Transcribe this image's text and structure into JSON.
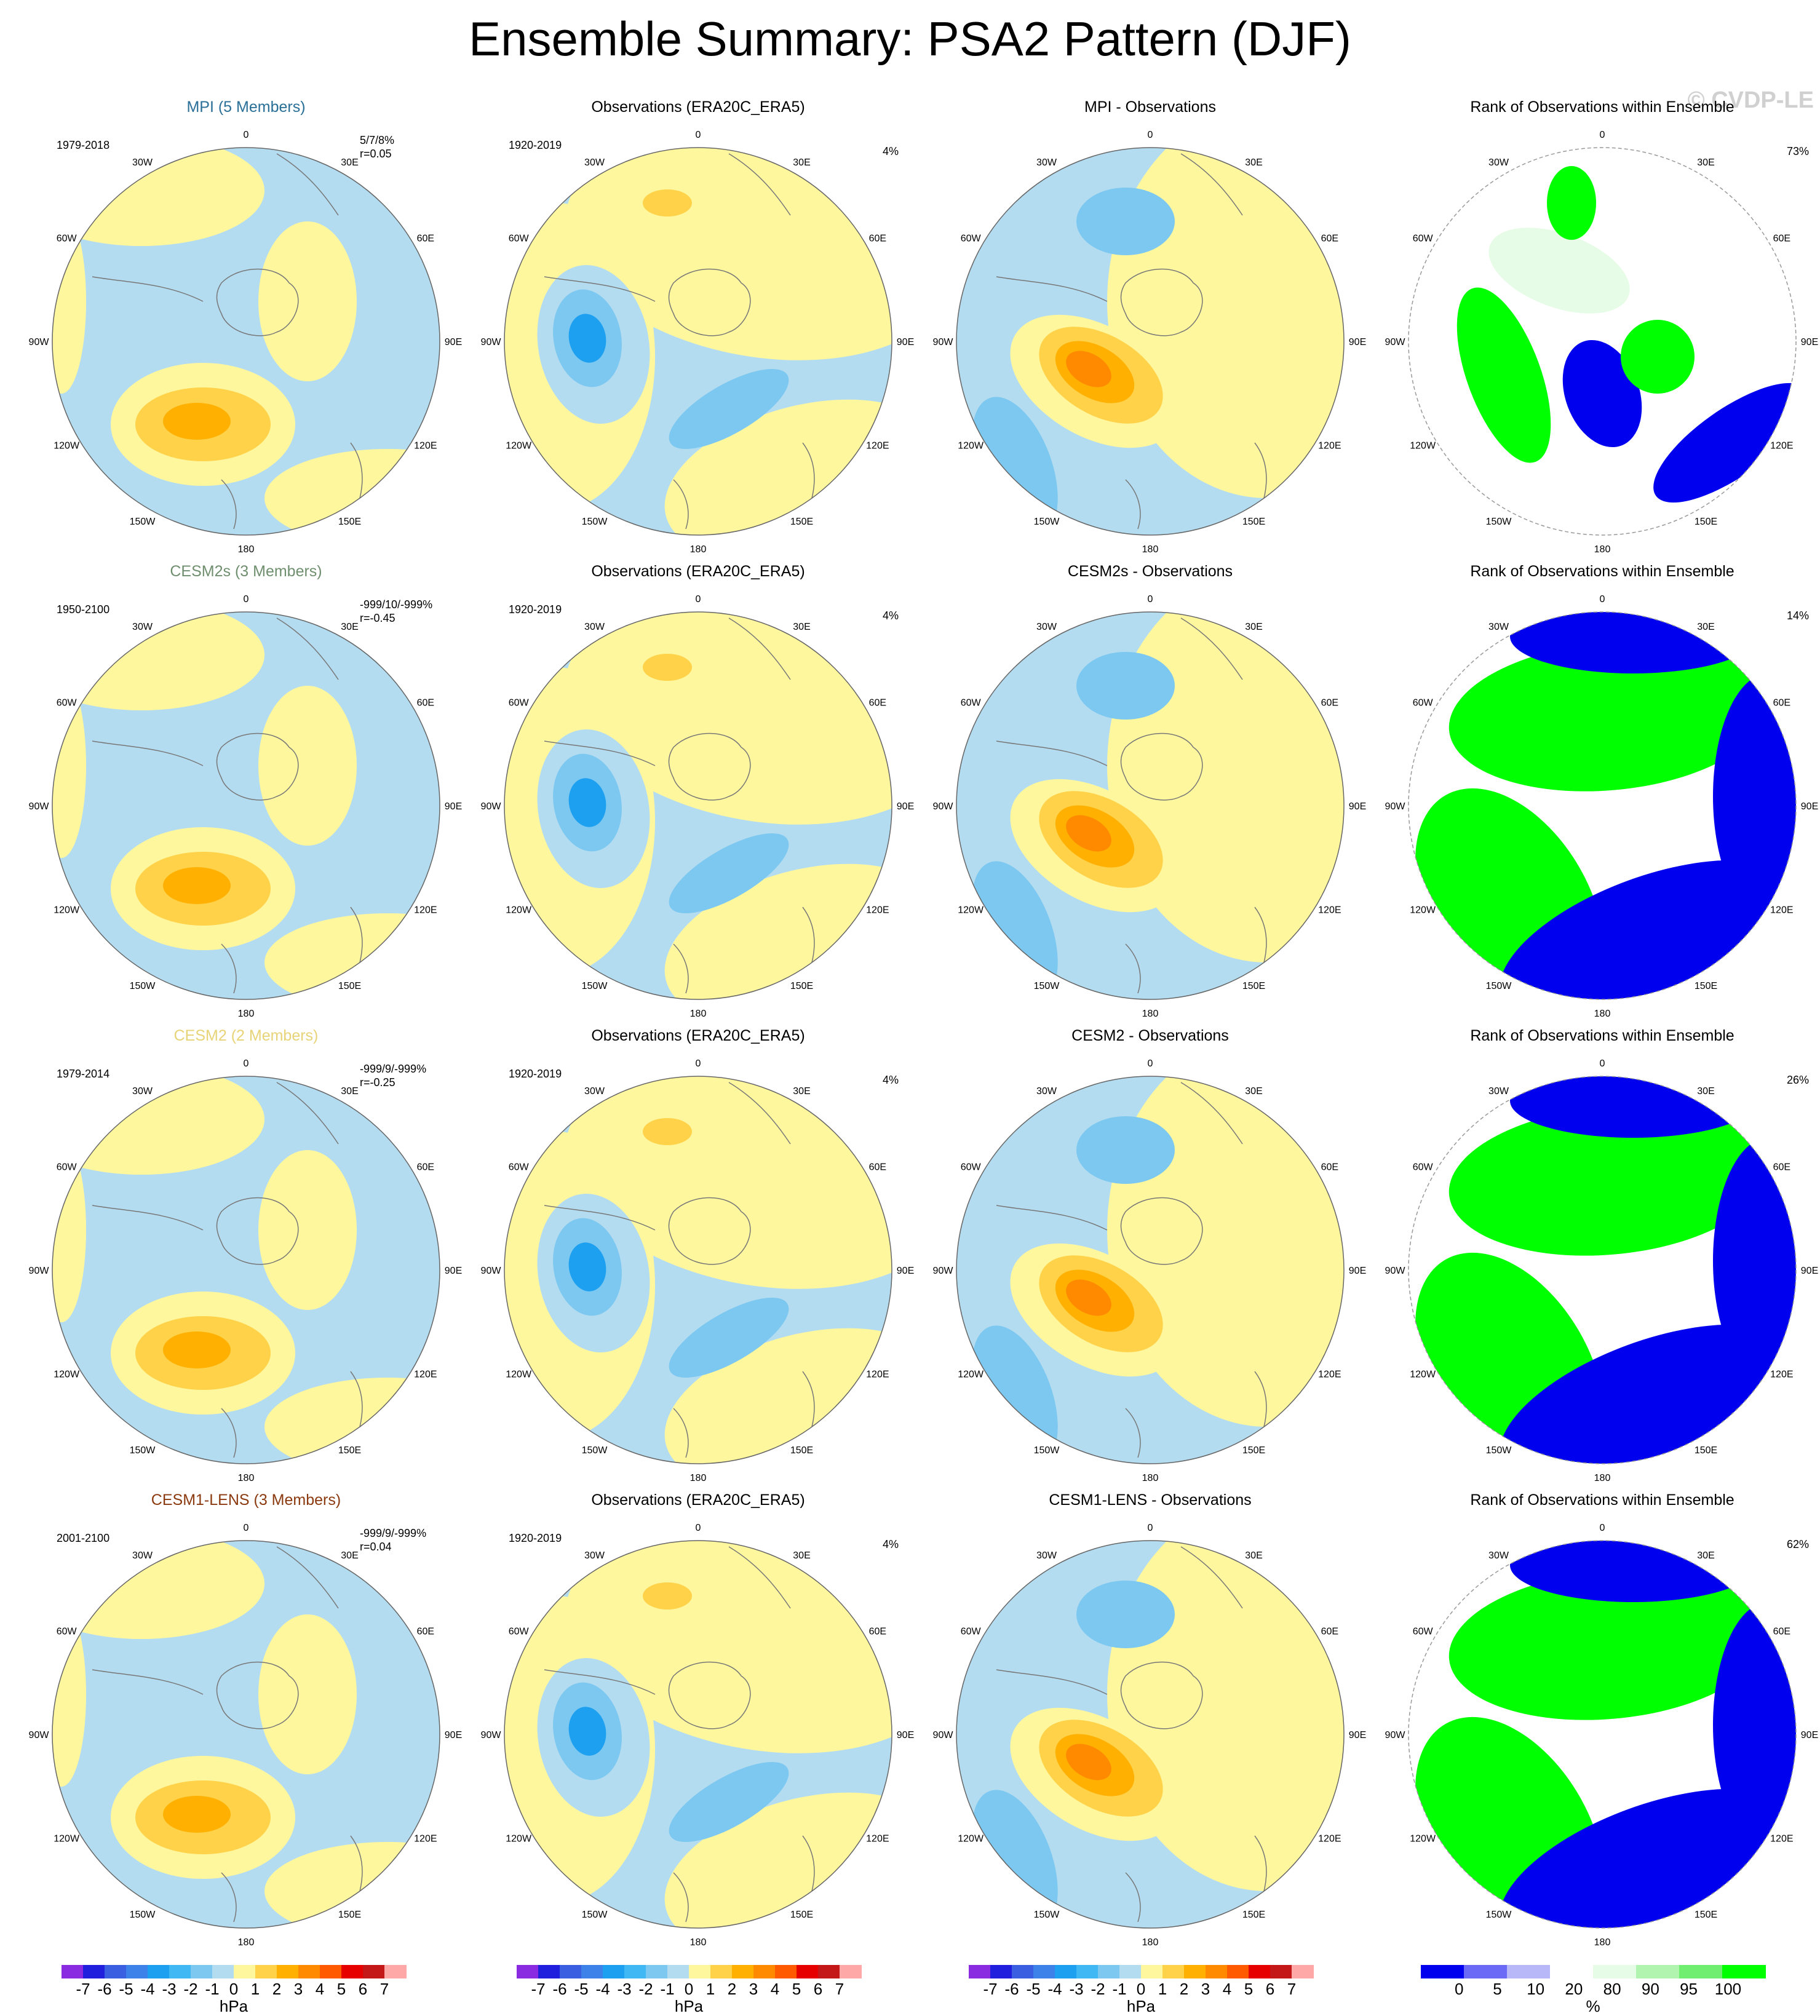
{
  "title": "Ensemble Summary: PSA2 Pattern (DJF)",
  "watermark": "© CVDP-LE",
  "lon_labels": [
    "0",
    "30E",
    "60E",
    "90E",
    "120E",
    "150E",
    "180",
    "150W",
    "120W",
    "90W",
    "60W",
    "30W"
  ],
  "colors": {
    "ocean_light_blue": "#b4dcf0",
    "land_yellow": "#fff79e",
    "rank_blue": "#0000ee",
    "rank_green": "#00ff00",
    "rank_pale_green": "#e6fce6"
  },
  "chart_data": [
    {
      "type": "heatmap",
      "row": 0,
      "col": 0,
      "title": "MPI (5 Members)",
      "title_color": "#2a6f97",
      "years": "1979-2018",
      "stats_line1": "5/7/8%",
      "stats_line2": "r=0.05",
      "map": "model"
    },
    {
      "type": "heatmap",
      "row": 0,
      "col": 1,
      "title": "Observations (ERA20C_ERA5)",
      "years": "1920-2019",
      "pct": "4%",
      "map": "obs"
    },
    {
      "type": "heatmap",
      "row": 0,
      "col": 2,
      "title": "MPI - Observations",
      "map": "diff_mpi"
    },
    {
      "type": "heatmap",
      "row": 0,
      "col": 3,
      "title": "Rank of Observations within Ensemble",
      "pct": "73%",
      "map": "rank_mpi"
    },
    {
      "type": "heatmap",
      "row": 1,
      "col": 0,
      "title": "CESM2s (3 Members)",
      "title_color": "#6f8f6f",
      "years": "1950-2100",
      "stats_line1": "-999/10/-999%",
      "stats_line2": "r=-0.45",
      "map": "model"
    },
    {
      "type": "heatmap",
      "row": 1,
      "col": 1,
      "title": "Observations (ERA20C_ERA5)",
      "years": "1920-2019",
      "pct": "4%",
      "map": "obs"
    },
    {
      "type": "heatmap",
      "row": 1,
      "col": 2,
      "title": "CESM2s - Observations",
      "map": "diff"
    },
    {
      "type": "heatmap",
      "row": 1,
      "col": 3,
      "title": "Rank of Observations within Ensemble",
      "pct": "14%",
      "map": "rank"
    },
    {
      "type": "heatmap",
      "row": 2,
      "col": 0,
      "title": "CESM2 (2 Members)",
      "title_color": "#e8d478",
      "years": "1979-2014",
      "stats_line1": "-999/9/-999%",
      "stats_line2": "r=-0.25",
      "map": "model"
    },
    {
      "type": "heatmap",
      "row": 2,
      "col": 1,
      "title": "Observations (ERA20C_ERA5)",
      "years": "1920-2019",
      "pct": "4%",
      "map": "obs"
    },
    {
      "type": "heatmap",
      "row": 2,
      "col": 2,
      "title": "CESM2 - Observations",
      "map": "diff"
    },
    {
      "type": "heatmap",
      "row": 2,
      "col": 3,
      "title": "Rank of Observations within Ensemble",
      "pct": "26%",
      "map": "rank"
    },
    {
      "type": "heatmap",
      "row": 3,
      "col": 0,
      "title": "CESM1-LENS (3 Members)",
      "title_color": "#8b3a0f",
      "years": "2001-2100",
      "stats_line1": "-999/9/-999%",
      "stats_line2": "r=0.04",
      "map": "model"
    },
    {
      "type": "heatmap",
      "row": 3,
      "col": 1,
      "title": "Observations (ERA20C_ERA5)",
      "years": "1920-2019",
      "pct": "4%",
      "map": "obs"
    },
    {
      "type": "heatmap",
      "row": 3,
      "col": 2,
      "title": "CESM1-LENS - Observations",
      "map": "diff"
    },
    {
      "type": "heatmap",
      "row": 3,
      "col": 3,
      "title": "Rank of Observations within Ensemble",
      "pct": "62%",
      "map": "rank"
    }
  ],
  "colorbar_hpa": {
    "unit": "hPa",
    "ticks": [
      "-7",
      "-6",
      "-5",
      "-4",
      "-3",
      "-2",
      "-1",
      "0",
      "1",
      "2",
      "3",
      "4",
      "5",
      "6",
      "7"
    ],
    "colors": [
      "#8a2be2",
      "#1f1fdd",
      "#3a5fe0",
      "#3c82e8",
      "#1ea0f0",
      "#3fb8f4",
      "#7cc8f0",
      "#b4dcf0",
      "#fff79e",
      "#ffd24a",
      "#ffb000",
      "#ff8a00",
      "#ff5a00",
      "#e60000",
      "#c41818",
      "#ffa8a8"
    ]
  },
  "colorbar_rank": {
    "unit": "%",
    "ticks": [
      "0",
      "5",
      "10",
      "20",
      "80",
      "90",
      "95",
      "100"
    ],
    "colors": [
      "#0000ee",
      "#6a6af6",
      "#b8b8f8",
      "#ffffff",
      "#e6fce6",
      "#b0f4b0",
      "#70ee70",
      "#00ff00"
    ]
  }
}
